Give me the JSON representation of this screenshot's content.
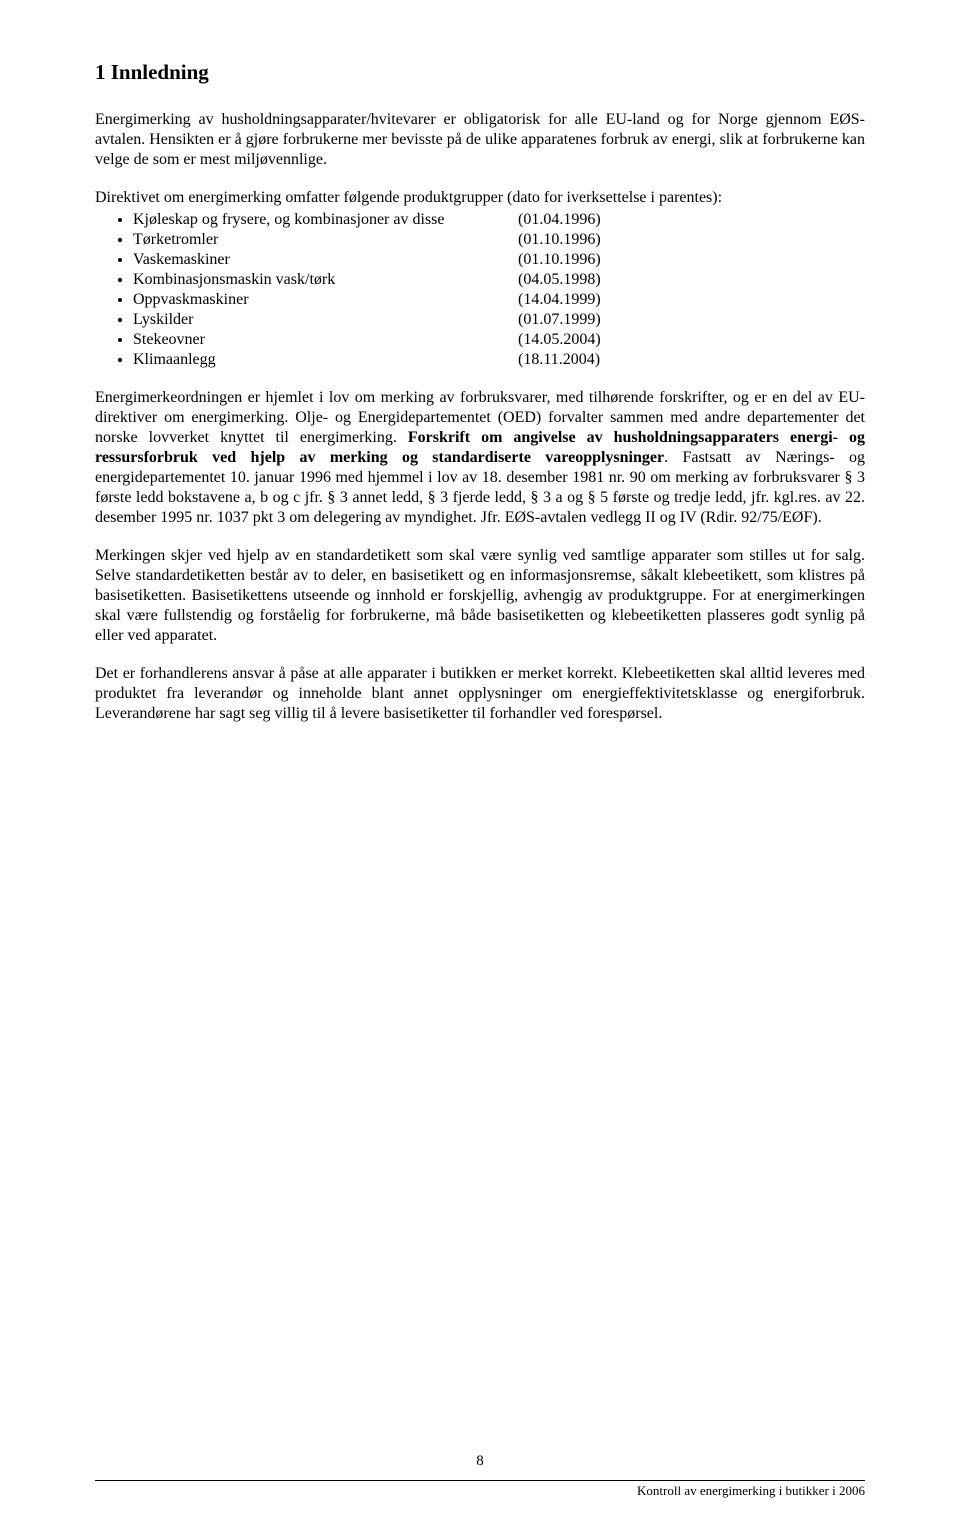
{
  "heading": "1    Innledning",
  "para1": "Energimerking av husholdningsapparater/hvitevarer er obligatorisk for alle EU-land og for Norge gjennom EØS-avtalen. Hensikten er å gjøre forbrukerne mer bevisste på de ulike apparatenes forbruk av energi, slik at forbrukerne kan velge de som er mest miljøvennlige.",
  "para2": "Direktivet om energimerking omfatter følgende produktgrupper (dato for iverksettelse i parentes):",
  "products": [
    {
      "label": "Kjøleskap og frysere, og kombinasjoner av disse",
      "date": "(01.04.1996)"
    },
    {
      "label": "Tørketromler",
      "date": "(01.10.1996)"
    },
    {
      "label": "Vaskemaskiner",
      "date": "(01.10.1996)"
    },
    {
      "label": "Kombinasjonsmaskin vask/tørk",
      "date": "(04.05.1998)"
    },
    {
      "label": "Oppvaskmaskiner",
      "date": "(14.04.1999)"
    },
    {
      "label": "Lyskilder",
      "date": "(01.07.1999)"
    },
    {
      "label": "Stekeovner",
      "date": "(14.05.2004)"
    },
    {
      "label": "Klimaanlegg",
      "date": "(18.11.2004)"
    }
  ],
  "para3_a": "Energimerkeordningen er hjemlet i lov om merking av forbruksvarer, med tilhørende forskrifter, og er en del av EU-direktiver om energimerking. Olje- og Energidepartementet (OED) forvalter sammen med andre departementer det norske lovverket knyttet til energimerking. ",
  "para3_bold": "Forskrift om angivelse av husholdningsapparaters energi- og ressursforbruk ved hjelp av merking og standardiserte vareopplysninger",
  "para3_b": ". Fastsatt av Nærings- og energidepartementet 10. januar 1996 med hjemmel i lov av 18. desember 1981 nr. 90 om merking av forbruksvarer § 3 første ledd bokstavene a, b og c jfr. § 3 annet ledd, § 3 fjerde ledd, § 3 a og § 5 første og tredje ledd, jfr. kgl.res. av 22. desember 1995 nr. 1037 pkt 3 om delegering av myndighet. Jfr. EØS-avtalen vedlegg II og IV (Rdir. 92/75/EØF).",
  "para4": "Merkingen skjer ved hjelp av en standardetikett som skal være synlig ved samtlige apparater som stilles ut for salg. Selve standardetiketten består av to deler, en basisetikett og en informasjonsremse, såkalt klebeetikett, som klistres på basisetiketten. Basisetikettens utseende og innhold er forskjellig, avhengig av produktgruppe. For at energimerkingen skal være fullstendig og forståelig for forbrukerne, må både basisetiketten og klebeetiketten plasseres godt synlig på eller ved apparatet.",
  "para5": "Det er forhandlerens ansvar å påse at alle apparater i butikken er merket korrekt. Klebeetiketten skal alltid leveres med produktet fra leverandør og inneholde blant annet opplysninger om energieffektivitetsklasse og energiforbruk. Leverandørene har sagt seg villig til å levere basisetiketter til forhandler ved forespørsel.",
  "page_number": "8",
  "footer_text": "Kontroll av energimerking i butikker i 2006"
}
